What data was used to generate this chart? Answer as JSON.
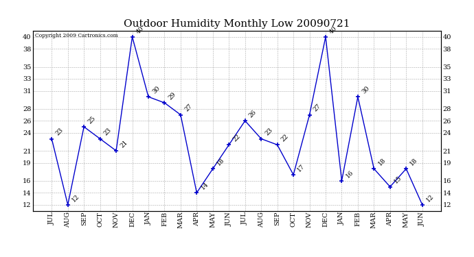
{
  "title": "Outdoor Humidity Monthly Low 20090721",
  "copyright": "Copyright 2009 Cartronics.com",
  "months": [
    "JUL",
    "AUG",
    "SEP",
    "OCT",
    "NOV",
    "DEC",
    "JAN",
    "FEB",
    "MAR",
    "APR",
    "MAY",
    "JUN",
    "JUL",
    "AUG",
    "SEP",
    "OCT",
    "NOV",
    "DEC",
    "JAN",
    "FEB",
    "MAR",
    "APR",
    "MAY",
    "JUN"
  ],
  "values": [
    23,
    12,
    25,
    23,
    21,
    40,
    30,
    29,
    27,
    14,
    18,
    22,
    26,
    23,
    22,
    17,
    27,
    40,
    16,
    30,
    18,
    15,
    18,
    12
  ],
  "line_color": "#0000cc",
  "marker": "+",
  "marker_color": "#0000cc",
  "bg_color": "#ffffff",
  "grid_color": "#aaaaaa",
  "ylim": [
    11,
    41
  ],
  "yticks": [
    12,
    14,
    16,
    19,
    21,
    24,
    26,
    28,
    31,
    33,
    35,
    38,
    40
  ],
  "title_fontsize": 11,
  "label_fontsize": 6.5,
  "tick_fontsize": 7,
  "copyright_fontsize": 5.5
}
